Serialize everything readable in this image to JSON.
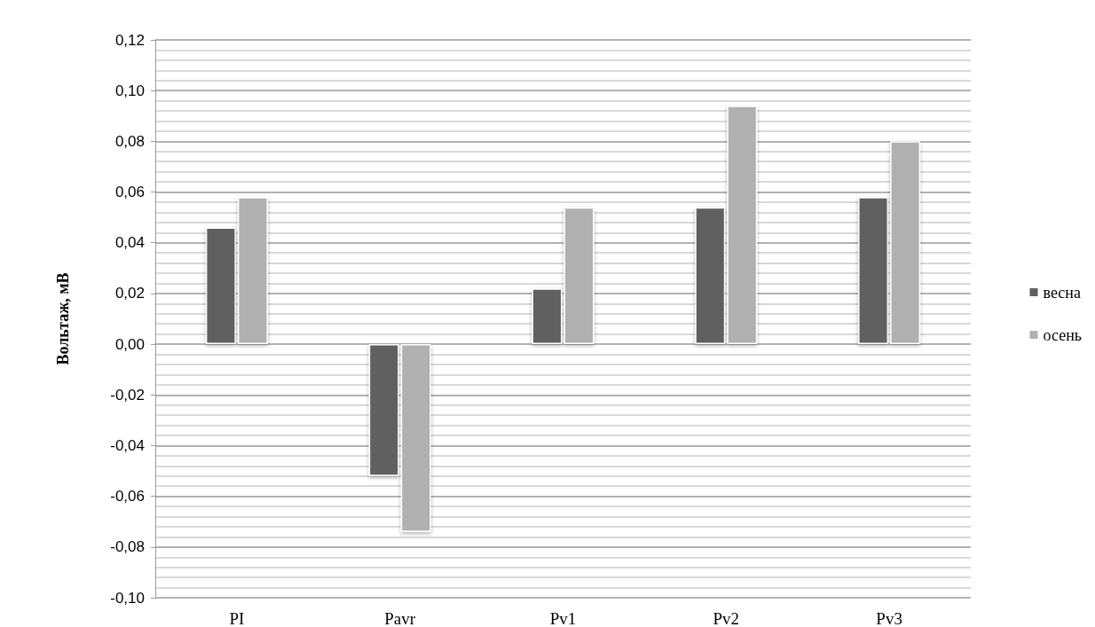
{
  "chart_data": {
    "type": "bar",
    "ylabel": "Вольтаж, мВ",
    "categories": [
      "PI",
      "Pavr",
      "Pv1",
      "Pv2",
      "Pv3"
    ],
    "series": [
      {
        "name": "весна",
        "color": "#606060",
        "values": [
          0.046,
          -0.052,
          0.022,
          0.054,
          0.058
        ]
      },
      {
        "name": "осень",
        "color": "#b0b0b0",
        "values": [
          0.058,
          -0.074,
          0.054,
          0.094,
          0.08
        ]
      }
    ],
    "ylim": [
      -0.1,
      0.12
    ],
    "yticks": [
      {
        "value": -0.1,
        "label": "-0,10"
      },
      {
        "value": -0.08,
        "label": "-0,08"
      },
      {
        "value": -0.06,
        "label": "-0,06"
      },
      {
        "value": -0.04,
        "label": "-0,04"
      },
      {
        "value": -0.02,
        "label": "-0,02"
      },
      {
        "value": 0,
        "label": "0,00"
      },
      {
        "value": 0.02,
        "label": "0,02"
      },
      {
        "value": 0.04,
        "label": "0,04"
      },
      {
        "value": 0.06,
        "label": "0,06"
      },
      {
        "value": 0.08,
        "label": "0,08"
      },
      {
        "value": 0.1,
        "label": "0,10"
      },
      {
        "value": 0.12,
        "label": "0,12"
      }
    ],
    "grid": true,
    "legend": "right"
  }
}
